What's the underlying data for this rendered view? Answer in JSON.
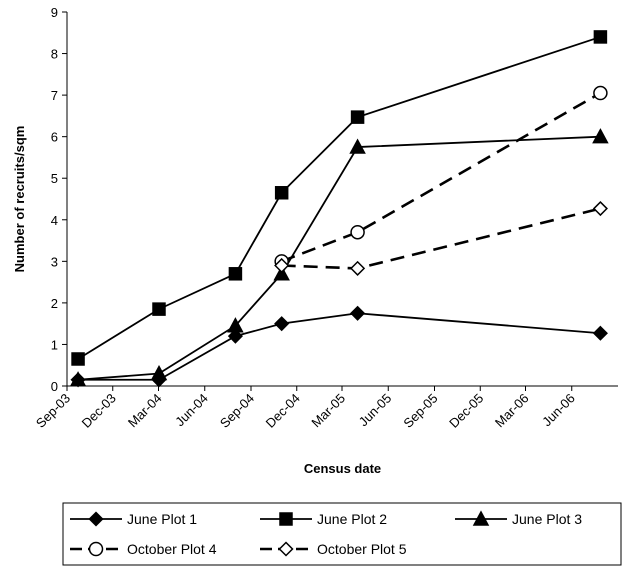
{
  "chart_data": {
    "type": "line",
    "title": "",
    "xlabel": "Census date",
    "ylabel": "Number of recruits/sqm",
    "ylim": [
      0,
      9
    ],
    "yticks": [
      0,
      1,
      2,
      3,
      4,
      5,
      6,
      7,
      8,
      9
    ],
    "xlim": [
      "2003-09-01",
      "2006-09-01"
    ],
    "xticks": [
      {
        "date": "2003-09-01",
        "label": "Sep-03"
      },
      {
        "date": "2003-12-01",
        "label": "Dec-03"
      },
      {
        "date": "2004-03-01",
        "label": "Mar-04"
      },
      {
        "date": "2004-06-01",
        "label": "Jun-04"
      },
      {
        "date": "2004-09-01",
        "label": "Sep-04"
      },
      {
        "date": "2004-12-01",
        "label": "Dec-04"
      },
      {
        "date": "2005-03-01",
        "label": "Mar-05"
      },
      {
        "date": "2005-06-01",
        "label": "Jun-05"
      },
      {
        "date": "2005-09-01",
        "label": "Sep-05"
      },
      {
        "date": "2005-12-01",
        "label": "Dec-05"
      },
      {
        "date": "2006-03-01",
        "label": "Mar-06"
      },
      {
        "date": "2006-06-01",
        "label": "Jun-06"
      }
    ],
    "grid": false,
    "legend_position": "bottom",
    "series": [
      {
        "name": "June Plot 1",
        "marker": "diamond-filled",
        "dash": "solid",
        "color": "#000000",
        "points": [
          {
            "x": "2003-09-23",
            "y": 0.15
          },
          {
            "x": "2004-03-02",
            "y": 0.15
          },
          {
            "x": "2004-08-01",
            "y": 1.2
          },
          {
            "x": "2004-11-01",
            "y": 1.5
          },
          {
            "x": "2005-04-01",
            "y": 1.75
          },
          {
            "x": "2006-07-28",
            "y": 1.27
          }
        ]
      },
      {
        "name": "June Plot 2",
        "marker": "square-filled",
        "dash": "solid",
        "color": "#000000",
        "points": [
          {
            "x": "2003-09-23",
            "y": 0.65
          },
          {
            "x": "2004-03-02",
            "y": 1.85
          },
          {
            "x": "2004-08-01",
            "y": 2.7
          },
          {
            "x": "2004-11-01",
            "y": 4.65
          },
          {
            "x": "2005-04-01",
            "y": 6.47
          },
          {
            "x": "2006-07-28",
            "y": 8.4
          }
        ]
      },
      {
        "name": "June Plot 3",
        "marker": "triangle-filled",
        "dash": "solid",
        "color": "#000000",
        "points": [
          {
            "x": "2003-09-23",
            "y": 0.15
          },
          {
            "x": "2004-03-02",
            "y": 0.3
          },
          {
            "x": "2004-08-01",
            "y": 1.45
          },
          {
            "x": "2004-11-01",
            "y": 2.7
          },
          {
            "x": "2005-04-01",
            "y": 5.75
          },
          {
            "x": "2006-07-28",
            "y": 6.0
          }
        ]
      },
      {
        "name": "October Plot 4",
        "marker": "circle-open",
        "dash": "dashed",
        "color": "#000000",
        "points": [
          {
            "x": "2004-11-01",
            "y": 3.0
          },
          {
            "x": "2005-04-01",
            "y": 3.7
          },
          {
            "x": "2006-07-28",
            "y": 7.05
          }
        ]
      },
      {
        "name": "October Plot 5",
        "marker": "diamond-open",
        "dash": "dashed",
        "color": "#000000",
        "points": [
          {
            "x": "2004-11-01",
            "y": 2.9
          },
          {
            "x": "2005-04-01",
            "y": 2.83
          },
          {
            "x": "2006-07-28",
            "y": 4.27
          }
        ]
      }
    ]
  }
}
